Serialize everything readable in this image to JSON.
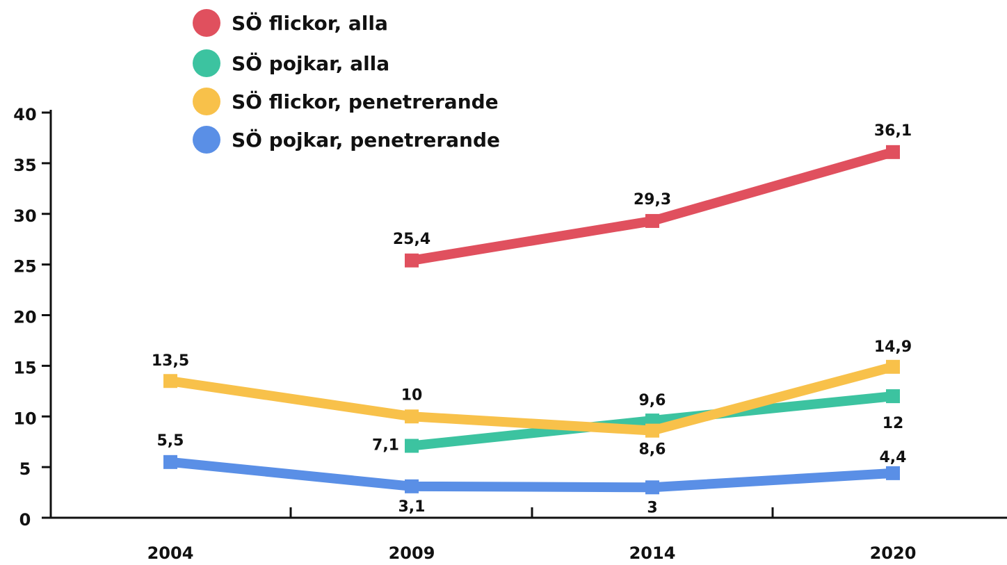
{
  "chart_data": {
    "type": "line",
    "categories": [
      "2004",
      "2009",
      "2014",
      "2020"
    ],
    "series": [
      {
        "name": "SÖ flickor, alla",
        "color": "#e0505e",
        "values": [
          null,
          25.4,
          29.3,
          36.1
        ],
        "value_labels": [
          null,
          "25,4",
          "29,3",
          "36,1"
        ]
      },
      {
        "name": "SÖ pojkar, alla",
        "color": "#3cc3a0",
        "values": [
          null,
          7.1,
          9.6,
          12
        ],
        "value_labels": [
          null,
          "7,1",
          "9,6",
          "12"
        ]
      },
      {
        "name": "SÖ flickor, penetrerande",
        "color": "#f8c14a",
        "values": [
          13.5,
          10,
          8.6,
          14.9
        ],
        "value_labels": [
          "13,5",
          "10",
          "8,6",
          "14,9"
        ]
      },
      {
        "name": "SÖ pojkar, penetrerande",
        "color": "#5a8fe6",
        "values": [
          5.5,
          3.1,
          3,
          4.4
        ],
        "value_labels": [
          "5,5",
          "3,1",
          "3",
          "4,4"
        ]
      }
    ],
    "ylim": [
      0,
      40
    ],
    "yticks": [
      0,
      5,
      10,
      15,
      20,
      25,
      30,
      35,
      40
    ],
    "legend": "top"
  }
}
